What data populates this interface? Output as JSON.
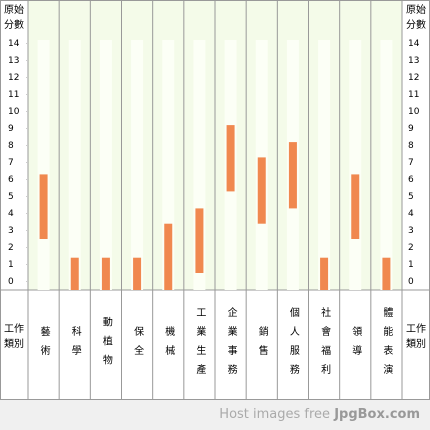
{
  "chart_data": {
    "type": "range",
    "y_label": "原始分數",
    "x_label": "工作類別",
    "categories": [
      "藝術",
      "科學",
      "動植物",
      "保全",
      "機械",
      "工業生產",
      "企業事務",
      "銷售",
      "個人服務",
      "社會福利",
      "領導",
      "體能表演"
    ],
    "values": [
      [
        2.5,
        6.3
      ],
      [
        -0.5,
        1.4
      ],
      [
        -0.5,
        1.4
      ],
      [
        -0.5,
        1.4
      ],
      [
        -0.5,
        3.4
      ],
      [
        0.5,
        4.3
      ],
      [
        5.3,
        9.2
      ],
      [
        3.4,
        7.3
      ],
      [
        4.3,
        8.2
      ],
      [
        -0.5,
        1.4
      ],
      [
        2.5,
        6.3
      ],
      [
        -0.5,
        1.4
      ]
    ],
    "color": "#f0884f",
    "ylim": [
      -0.5,
      14.5
    ],
    "yticks": [
      0,
      1,
      2,
      3,
      4,
      5,
      6,
      7,
      8,
      9,
      10,
      11,
      12,
      13,
      14
    ]
  },
  "watermark": {
    "text": "Host images free",
    "brand": "JpgBox.com"
  }
}
